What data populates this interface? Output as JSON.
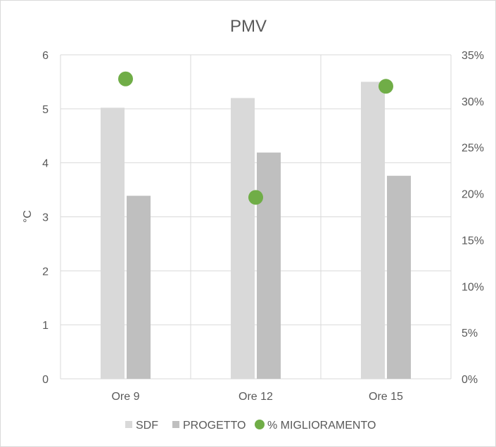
{
  "chart_data": {
    "type": "bar",
    "title": "PMV",
    "xlabel": "",
    "ylabel": "°C",
    "categories": [
      "Ore 9",
      "Ore 12",
      "Ore 15"
    ],
    "ylim": [
      0,
      6
    ],
    "yticks": [
      "0",
      "1",
      "2",
      "3",
      "4",
      "5",
      "6"
    ],
    "y2lim": [
      0,
      0.35
    ],
    "y2ticks": [
      "0%",
      "5%",
      "10%",
      "15%",
      "20%",
      "25%",
      "30%",
      "35%"
    ],
    "grid": true,
    "legend_position": "bottom",
    "series": [
      {
        "name": "SDF",
        "type": "bar",
        "axis": "left",
        "color": "#d9d9d9",
        "values": [
          5.02,
          5.2,
          5.5
        ]
      },
      {
        "name": "PROGETTO",
        "type": "bar",
        "axis": "left",
        "color": "#bfbfbf",
        "values": [
          3.39,
          4.19,
          3.76
        ]
      },
      {
        "name": "% MIGLIORAMENTO",
        "type": "scatter",
        "axis": "right",
        "color": "#70ad47",
        "values": [
          0.324,
          0.196,
          0.316
        ]
      }
    ]
  }
}
